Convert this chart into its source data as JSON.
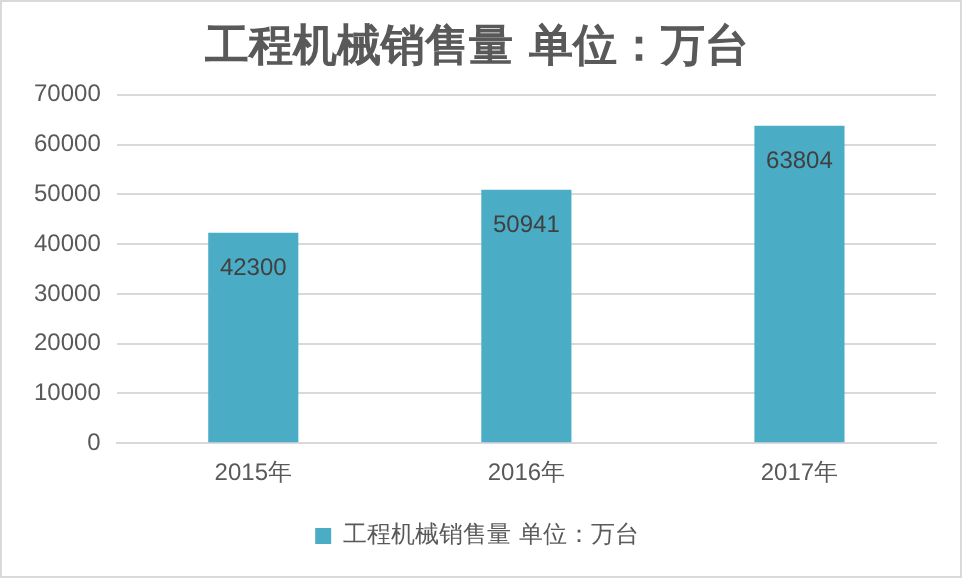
{
  "chart_data": {
    "type": "bar",
    "title": "工程机械销售量 单位：万台",
    "categories": [
      "2015年",
      "2016年",
      "2017年"
    ],
    "series": [
      {
        "name": "工程机械销售量 单位：万台",
        "color": "#4bacc6",
        "values": [
          42300,
          50941,
          63804
        ]
      }
    ],
    "ylim": [
      0,
      70000
    ],
    "yticks": [
      0,
      10000,
      20000,
      30000,
      40000,
      50000,
      60000,
      70000
    ],
    "grid": "y",
    "legend": "bottom",
    "data_labels": true
  }
}
